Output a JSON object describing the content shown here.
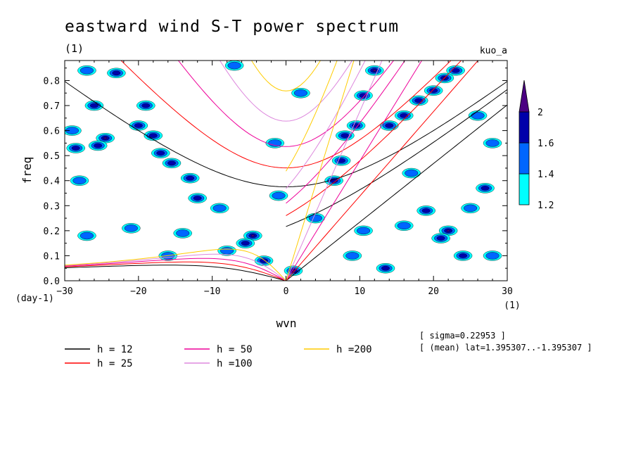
{
  "chart_data": {
    "type": "heatmap",
    "title": "eastward wind S-T power spectrum",
    "subtitle": "(1)",
    "source_label": "kuo_a",
    "xlabel": "wvn",
    "xunit": "(1)",
    "ylabel": "freq",
    "yunit": "(day-1)",
    "xlim": [
      -30,
      30
    ],
    "ylim": [
      0,
      0.88
    ],
    "xticks": [
      -30,
      -20,
      -10,
      0,
      10,
      20,
      30
    ],
    "yticks": [
      0.0,
      0.1,
      0.2,
      0.3,
      0.4,
      0.5,
      0.6,
      0.7,
      0.8
    ],
    "ytick_labels": [
      "0.0",
      "0.1",
      "0.2",
      "0.3",
      "0.4",
      "0.5",
      "0.6",
      "0.7",
      "0.8"
    ],
    "grid": false,
    "colorbar": {
      "levels": [
        1.2,
        1.4,
        1.6,
        2
      ],
      "labels": [
        "1.2",
        "1.4",
        "1.6",
        "2"
      ],
      "colors": [
        "#00ffff",
        "#0066ff",
        "#0000aa",
        "#4b0082"
      ],
      "extend": "max"
    },
    "dispersion_curves": [
      {
        "label": "h = 12",
        "h": 12,
        "color": "#000000"
      },
      {
        "label": "h = 25",
        "h": 25,
        "color": "#ff0000"
      },
      {
        "label": "h = 50",
        "h": 50,
        "color": "#ee0099"
      },
      {
        "label": "h =100",
        "h": 100,
        "color": "#dd88dd"
      },
      {
        "label": "h =200",
        "h": 200,
        "color": "#ffcc00"
      }
    ],
    "power_blobs": [
      {
        "x": 1.0,
        "y": 0.04,
        "level": 2.0
      },
      {
        "x": 12.0,
        "y": 0.84,
        "level": 2.0
      },
      {
        "x": 10.5,
        "y": 0.74,
        "level": 1.6
      },
      {
        "x": 9.5,
        "y": 0.62,
        "level": 1.6
      },
      {
        "x": 8.0,
        "y": 0.58,
        "level": 1.6
      },
      {
        "x": 7.5,
        "y": 0.48,
        "level": 1.6
      },
      {
        "x": 6.5,
        "y": 0.4,
        "level": 1.6
      },
      {
        "x": 14.0,
        "y": 0.62,
        "level": 1.6
      },
      {
        "x": 16.0,
        "y": 0.66,
        "level": 1.6
      },
      {
        "x": 18.0,
        "y": 0.72,
        "level": 1.6
      },
      {
        "x": 21.5,
        "y": 0.81,
        "level": 2.0
      },
      {
        "x": 23.0,
        "y": 0.84,
        "level": 1.6
      },
      {
        "x": 20.0,
        "y": 0.76,
        "level": 1.6
      },
      {
        "x": 22.0,
        "y": 0.2,
        "level": 2.0
      },
      {
        "x": 21.0,
        "y": 0.17,
        "level": 1.6
      },
      {
        "x": 19.0,
        "y": 0.28,
        "level": 1.6
      },
      {
        "x": 24.0,
        "y": 0.1,
        "level": 1.6
      },
      {
        "x": 27.0,
        "y": 0.37,
        "level": 1.6
      },
      {
        "x": 13.5,
        "y": 0.05,
        "level": 1.6
      },
      {
        "x": 10.5,
        "y": 0.2,
        "level": 1.4
      },
      {
        "x": 9.0,
        "y": 0.1,
        "level": 1.4
      },
      {
        "x": -4.5,
        "y": 0.18,
        "level": 2.0
      },
      {
        "x": -5.5,
        "y": 0.15,
        "level": 1.6
      },
      {
        "x": -3.0,
        "y": 0.08,
        "level": 1.6
      },
      {
        "x": -9.0,
        "y": 0.29,
        "level": 1.4
      },
      {
        "x": -12.0,
        "y": 0.33,
        "level": 1.6
      },
      {
        "x": -15.5,
        "y": 0.47,
        "level": 1.6
      },
      {
        "x": -13.0,
        "y": 0.41,
        "level": 1.6
      },
      {
        "x": -18.0,
        "y": 0.58,
        "level": 1.6
      },
      {
        "x": -17.0,
        "y": 0.51,
        "level": 1.6
      },
      {
        "x": -20.0,
        "y": 0.62,
        "level": 1.6
      },
      {
        "x": -19.0,
        "y": 0.7,
        "level": 1.6
      },
      {
        "x": -24.5,
        "y": 0.57,
        "level": 2.0
      },
      {
        "x": -25.5,
        "y": 0.54,
        "level": 1.6
      },
      {
        "x": -28.5,
        "y": 0.53,
        "level": 1.6
      },
      {
        "x": -26.0,
        "y": 0.7,
        "level": 1.6
      },
      {
        "x": -23.0,
        "y": 0.83,
        "level": 1.6
      },
      {
        "x": -27.0,
        "y": 0.84,
        "level": 1.4
      },
      {
        "x": -29.0,
        "y": 0.6,
        "level": 1.4
      },
      {
        "x": -28.0,
        "y": 0.4,
        "level": 1.4
      },
      {
        "x": -27.0,
        "y": 0.18,
        "level": 1.4
      },
      {
        "x": -21.0,
        "y": 0.21,
        "level": 1.4
      },
      {
        "x": -8.0,
        "y": 0.12,
        "level": 1.4
      },
      {
        "x": -1.0,
        "y": 0.34,
        "level": 1.4
      },
      {
        "x": -7.0,
        "y": 0.86,
        "level": 1.4
      },
      {
        "x": 2.0,
        "y": 0.75,
        "level": 1.4
      },
      {
        "x": -1.5,
        "y": 0.55,
        "level": 1.4
      },
      {
        "x": 26.0,
        "y": 0.66,
        "level": 1.4
      },
      {
        "x": 28.0,
        "y": 0.55,
        "level": 1.4
      },
      {
        "x": 17.0,
        "y": 0.43,
        "level": 1.4
      },
      {
        "x": 25.0,
        "y": 0.29,
        "level": 1.4
      },
      {
        "x": 16.0,
        "y": 0.22,
        "level": 1.4
      },
      {
        "x": 28.0,
        "y": 0.1,
        "level": 1.4
      },
      {
        "x": 4.0,
        "y": 0.25,
        "level": 1.4
      },
      {
        "x": -14.0,
        "y": 0.19,
        "level": 1.4
      },
      {
        "x": -16.0,
        "y": 0.1,
        "level": 1.4
      }
    ],
    "annotations": [
      "[ sigma=0.22953 ]",
      "[ (mean) lat=1.395307..-1.395307 ]"
    ]
  }
}
